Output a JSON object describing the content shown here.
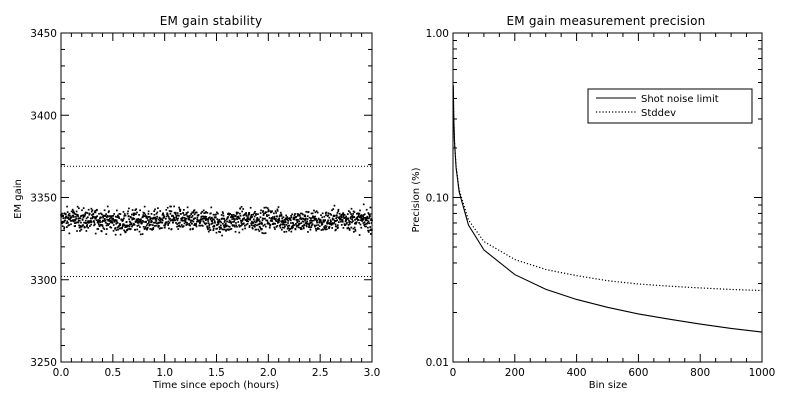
{
  "chart_data": [
    {
      "type": "scatter",
      "title": "EM gain stability",
      "xlabel": "Time since epoch (hours)",
      "ylabel": "EM gain",
      "xlim": [
        0.0,
        3.0
      ],
      "ylim": [
        3250,
        3450
      ],
      "x_ticks": [
        "0.0",
        "0.5",
        "1.0",
        "1.5",
        "2.0",
        "2.5",
        "3.0"
      ],
      "y_ticks": [
        "3250",
        "3300",
        "3350",
        "3400",
        "3450"
      ],
      "grid": false,
      "series": [
        {
          "style": "points",
          "mean": 3336,
          "spread": 4,
          "x_range": [
            0.0,
            3.0
          ],
          "count": 1500
        },
        {
          "style": "dotted-line",
          "y": 3369
        },
        {
          "style": "dotted-line",
          "y": 3302
        }
      ]
    },
    {
      "type": "line",
      "title": "EM gain measurement precision",
      "xlabel": "Bin size",
      "ylabel": "Precision (%)",
      "xlim": [
        0,
        1000
      ],
      "ylim": [
        0.01,
        1.0
      ],
      "y_scale": "log",
      "x_ticks": [
        "0",
        "200",
        "400",
        "600",
        "800",
        "1000"
      ],
      "y_ticks": [
        "0.01",
        "0.10",
        "1.00"
      ],
      "grid": false,
      "legend_position": "top-right",
      "series": [
        {
          "name": "Shot noise limit",
          "style": "solid",
          "x": [
            1,
            2,
            3,
            5,
            10,
            20,
            50,
            100,
            200,
            300,
            400,
            500,
            600,
            700,
            800,
            900,
            1000
          ],
          "y": [
            0.48,
            0.34,
            0.28,
            0.215,
            0.152,
            0.108,
            0.068,
            0.048,
            0.034,
            0.0277,
            0.024,
            0.0215,
            0.0196,
            0.0182,
            0.017,
            0.016,
            0.0152
          ]
        },
        {
          "name": "Stddev",
          "style": "dotted",
          "x": [
            1,
            2,
            3,
            5,
            10,
            20,
            50,
            100,
            200,
            300,
            400,
            500,
            600,
            700,
            800,
            900,
            1000
          ],
          "y": [
            0.48,
            0.34,
            0.28,
            0.216,
            0.154,
            0.111,
            0.073,
            0.054,
            0.042,
            0.0365,
            0.0335,
            0.0312,
            0.0298,
            0.0289,
            0.0282,
            0.0276,
            0.0272
          ]
        }
      ]
    }
  ]
}
